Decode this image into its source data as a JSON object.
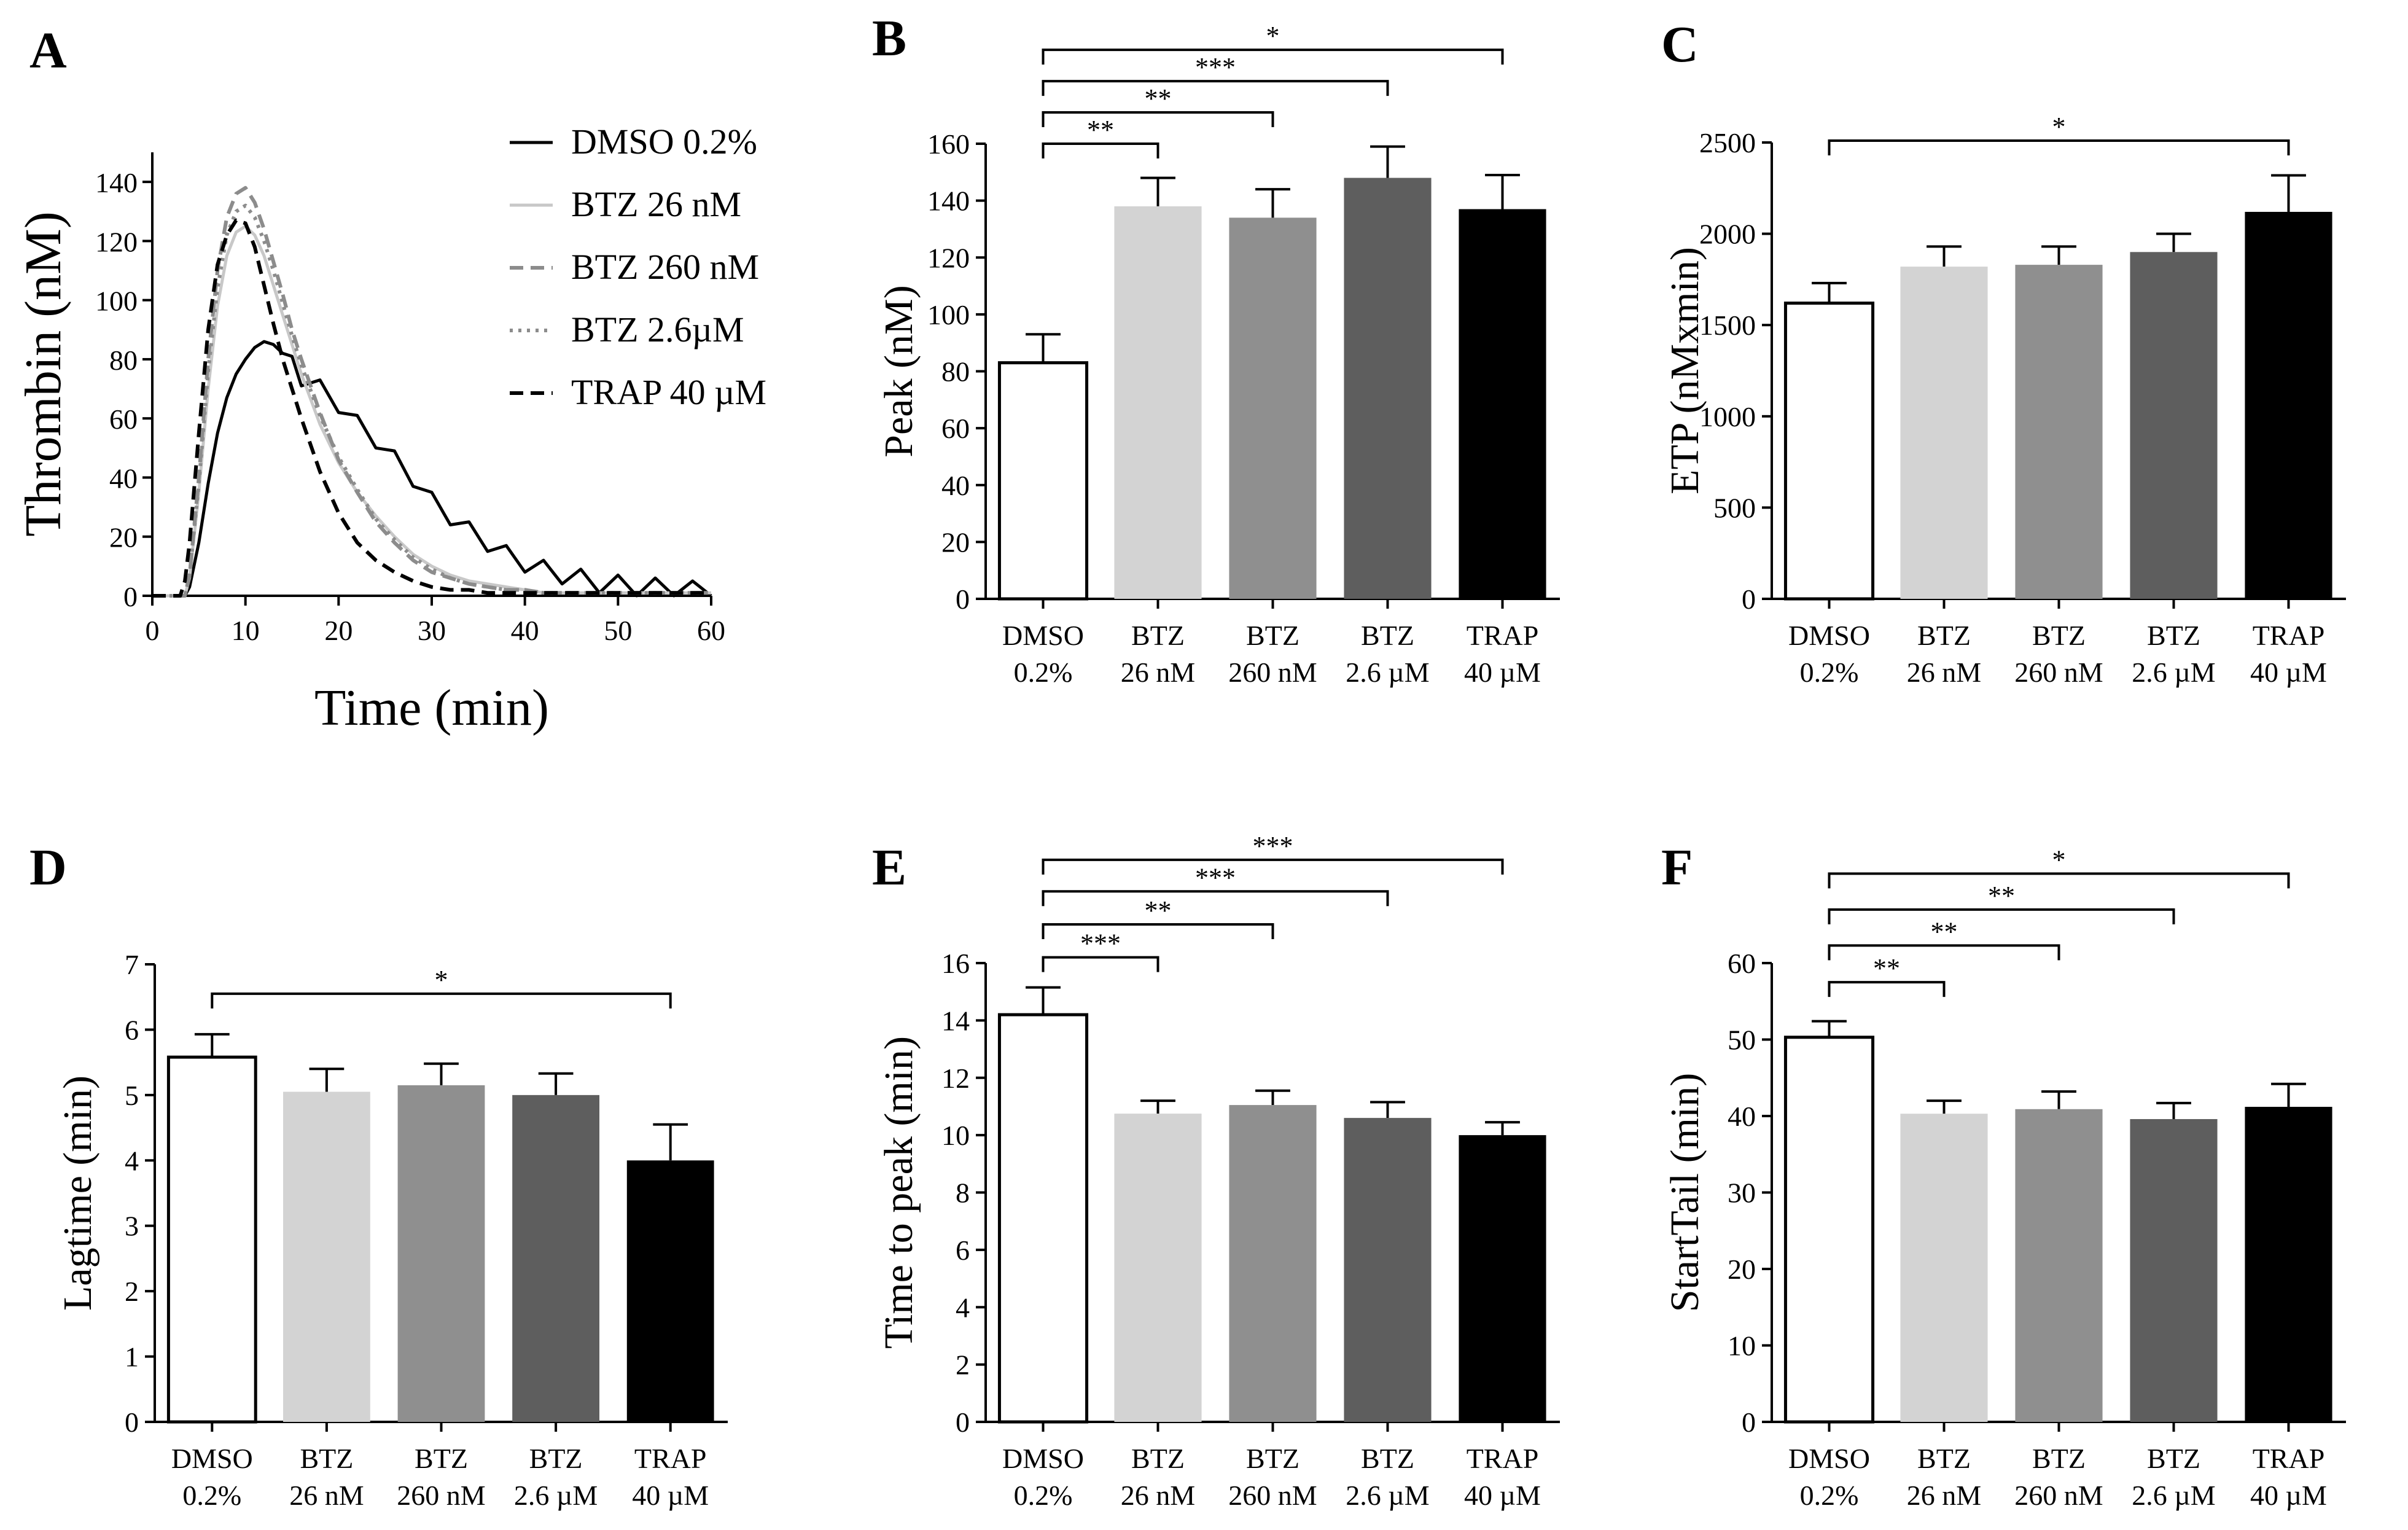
{
  "chart_data": [
    {
      "panel": "A",
      "type": "line",
      "xlabel": "Time (min)",
      "ylabel": "Thrombin (nM)",
      "xlim": [
        0,
        60
      ],
      "ylim": [
        0,
        150
      ],
      "xticks": [
        0,
        10,
        20,
        30,
        40,
        50,
        60
      ],
      "yticks": [
        0,
        20,
        40,
        60,
        80,
        100,
        120,
        140
      ],
      "legend_position": "top-right",
      "series": [
        {
          "name": "DMSO 0.2%",
          "color": "#000000",
          "style": "solid",
          "x": [
            0,
            3.5,
            4,
            5,
            6,
            7,
            8,
            9,
            10,
            11,
            12,
            13,
            14,
            15,
            16,
            18,
            20,
            22,
            24,
            26,
            28,
            30,
            32,
            34,
            36,
            38,
            40,
            42,
            44,
            46,
            48,
            50,
            52,
            54,
            56,
            58,
            60
          ],
          "y": [
            0,
            0,
            3,
            18,
            38,
            55,
            67,
            75,
            80,
            84,
            86,
            85,
            82,
            78,
            74,
            70,
            65,
            58,
            53,
            46,
            40,
            32,
            27,
            22,
            18,
            14,
            11,
            9,
            7,
            6,
            4,
            4,
            3,
            3,
            2,
            2,
            2
          ]
        },
        {
          "name": "BTZ 26 nM",
          "color": "#c8c8c8",
          "style": "solid",
          "x": [
            0,
            3.5,
            4,
            5,
            6,
            7,
            8,
            9,
            10,
            11,
            12,
            13,
            14,
            15,
            16,
            18,
            20,
            22,
            24,
            26,
            28,
            30,
            32,
            34,
            36,
            38,
            40,
            42,
            44,
            50,
            60
          ],
          "y": [
            0,
            0,
            6,
            35,
            70,
            98,
            115,
            123,
            125,
            122,
            115,
            105,
            95,
            85,
            75,
            58,
            45,
            35,
            27,
            20,
            14,
            10,
            7,
            5,
            4,
            3,
            2,
            1,
            1,
            1,
            1
          ]
        },
        {
          "name": "BTZ 260 nM",
          "color": "#8c8c8c",
          "style": "dashed",
          "x": [
            0,
            3.5,
            4,
            5,
            6,
            7,
            8,
            9,
            10,
            11,
            12,
            13,
            14,
            15,
            16,
            18,
            20,
            22,
            24,
            26,
            28,
            30,
            32,
            34,
            36,
            38,
            40,
            42,
            44,
            50,
            60
          ],
          "y": [
            0,
            0,
            7,
            40,
            80,
            110,
            128,
            136,
            138,
            133,
            124,
            113,
            102,
            90,
            80,
            62,
            46,
            35,
            25,
            18,
            12,
            8,
            6,
            4,
            3,
            2,
            2,
            1,
            1,
            1,
            1
          ]
        },
        {
          "name": "BTZ 2.6µM",
          "color": "#8c8c8c",
          "style": "dotted",
          "x": [
            0,
            3.5,
            4,
            5,
            6,
            7,
            8,
            9,
            10,
            11,
            12,
            13,
            14,
            15,
            16,
            18,
            20,
            22,
            24,
            26,
            28,
            30,
            32,
            34,
            36,
            38,
            40,
            42,
            44,
            50,
            60
          ],
          "y": [
            0,
            0,
            7,
            38,
            76,
            104,
            122,
            130,
            132,
            128,
            120,
            110,
            99,
            88,
            78,
            61,
            47,
            36,
            26,
            19,
            13,
            9,
            6,
            4,
            3,
            2,
            2,
            1,
            1,
            1,
            1
          ]
        },
        {
          "name": "TRAP 40 µM",
          "color": "#000000",
          "style": "dashed",
          "x": [
            0,
            3,
            3.5,
            4,
            5,
            6,
            7,
            8,
            9,
            10,
            11,
            12,
            13,
            14,
            15,
            16,
            18,
            20,
            22,
            24,
            26,
            28,
            30,
            32,
            34,
            36,
            40,
            50,
            60
          ],
          "y": [
            0,
            0,
            5,
            18,
            55,
            90,
            112,
            122,
            127,
            126,
            118,
            105,
            92,
            80,
            70,
            60,
            42,
            28,
            18,
            12,
            8,
            5,
            3,
            2,
            2,
            1,
            1,
            1,
            1
          ]
        }
      ]
    },
    {
      "panel": "B",
      "type": "bar",
      "ylabel": "Peak (nM)",
      "ylim": [
        0,
        160
      ],
      "yticks": [
        0,
        20,
        40,
        60,
        80,
        100,
        120,
        140,
        160
      ],
      "categories": [
        [
          "DMSO",
          "0.2%"
        ],
        [
          "BTZ",
          "26 nM"
        ],
        [
          "BTZ",
          "260 nM"
        ],
        [
          "BTZ",
          "2.6 µM"
        ],
        [
          "TRAP",
          "40 µM"
        ]
      ],
      "colors": [
        "#ffffff",
        "#d3d3d3",
        "#8f8f8f",
        "#5e5e5e",
        "#000000"
      ],
      "values": [
        83,
        138,
        134,
        148,
        137
      ],
      "errors": [
        10,
        10,
        10,
        11,
        12
      ],
      "significance": [
        {
          "from": 0,
          "to": 1,
          "label": "**",
          "y": 160
        },
        {
          "from": 0,
          "to": 2,
          "label": "**",
          "y": 171
        },
        {
          "from": 0,
          "to": 3,
          "label": "***",
          "y": 182
        },
        {
          "from": 0,
          "to": 4,
          "label": "*",
          "y": 193
        }
      ]
    },
    {
      "panel": "C",
      "type": "bar",
      "ylabel": "ETP (nMxmin)",
      "ylim": [
        0,
        2500
      ],
      "yticks": [
        0,
        500,
        1000,
        1500,
        2000,
        2500
      ],
      "categories": [
        [
          "DMSO",
          "0.2%"
        ],
        [
          "BTZ",
          "26 nM"
        ],
        [
          "BTZ",
          "260 nM"
        ],
        [
          "BTZ",
          "2.6 µM"
        ],
        [
          "TRAP",
          "40 µM"
        ]
      ],
      "colors": [
        "#ffffff",
        "#d3d3d3",
        "#8f8f8f",
        "#5e5e5e",
        "#000000"
      ],
      "values": [
        1620,
        1820,
        1830,
        1900,
        2120
      ],
      "errors": [
        110,
        110,
        100,
        100,
        200
      ],
      "significance": [
        {
          "from": 0,
          "to": 4,
          "label": "*",
          "y": 2510
        }
      ]
    },
    {
      "panel": "D",
      "type": "bar",
      "ylabel": "Lagtime (min)",
      "ylim": [
        0,
        7
      ],
      "yticks": [
        0,
        1,
        2,
        3,
        4,
        5,
        6,
        7
      ],
      "categories": [
        [
          "DMSO",
          "0.2%"
        ],
        [
          "BTZ",
          "26 nM"
        ],
        [
          "BTZ",
          "260 nM"
        ],
        [
          "BTZ",
          "2.6 µM"
        ],
        [
          "TRAP",
          "40 µM"
        ]
      ],
      "colors": [
        "#ffffff",
        "#d3d3d3",
        "#8f8f8f",
        "#5e5e5e",
        "#000000"
      ],
      "values": [
        5.58,
        5.05,
        5.15,
        5.0,
        4.0
      ],
      "errors": [
        0.35,
        0.35,
        0.33,
        0.33,
        0.55
      ],
      "significance": [
        {
          "from": 0,
          "to": 4,
          "label": "*",
          "y": 6.55
        }
      ]
    },
    {
      "panel": "E",
      "type": "bar",
      "ylabel": "Time to peak (min)",
      "ylim": [
        0,
        16
      ],
      "yticks": [
        0,
        2,
        4,
        6,
        8,
        10,
        12,
        14,
        16
      ],
      "categories": [
        [
          "DMSO",
          "0.2%"
        ],
        [
          "BTZ",
          "26 nM"
        ],
        [
          "BTZ",
          "260 nM"
        ],
        [
          "BTZ",
          "2.6 µM"
        ],
        [
          "TRAP",
          "40 µM"
        ]
      ],
      "colors": [
        "#ffffff",
        "#d3d3d3",
        "#8f8f8f",
        "#5e5e5e",
        "#000000"
      ],
      "values": [
        14.2,
        10.75,
        11.05,
        10.6,
        10.0
      ],
      "errors": [
        0.95,
        0.45,
        0.5,
        0.55,
        0.45
      ],
      "significance": [
        {
          "from": 0,
          "to": 1,
          "label": "***",
          "y": 16.2
        },
        {
          "from": 0,
          "to": 2,
          "label": "**",
          "y": 17.35
        },
        {
          "from": 0,
          "to": 3,
          "label": "***",
          "y": 18.5
        },
        {
          "from": 0,
          "to": 4,
          "label": "***",
          "y": 19.6
        }
      ]
    },
    {
      "panel": "F",
      "type": "bar",
      "ylabel": "StartTail (min)",
      "ylim": [
        0,
        60
      ],
      "yticks": [
        0,
        10,
        20,
        30,
        40,
        50,
        60
      ],
      "categories": [
        [
          "DMSO",
          "0.2%"
        ],
        [
          "BTZ",
          "26 nM"
        ],
        [
          "BTZ",
          "260 nM"
        ],
        [
          "BTZ",
          "2.6 µM"
        ],
        [
          "TRAP",
          "40 µM"
        ]
      ],
      "colors": [
        "#ffffff",
        "#d3d3d3",
        "#8f8f8f",
        "#5e5e5e",
        "#000000"
      ],
      "values": [
        50.3,
        40.3,
        40.9,
        39.6,
        41.2
      ],
      "errors": [
        2.1,
        1.7,
        2.3,
        2.1,
        3.0
      ],
      "significance": [
        {
          "from": 0,
          "to": 1,
          "label": "**",
          "y": 57.5
        },
        {
          "from": 0,
          "to": 2,
          "label": "**",
          "y": 62.3
        },
        {
          "from": 0,
          "to": 3,
          "label": "**",
          "y": 67.0
        },
        {
          "from": 0,
          "to": 4,
          "label": "*",
          "y": 71.7
        }
      ]
    }
  ]
}
